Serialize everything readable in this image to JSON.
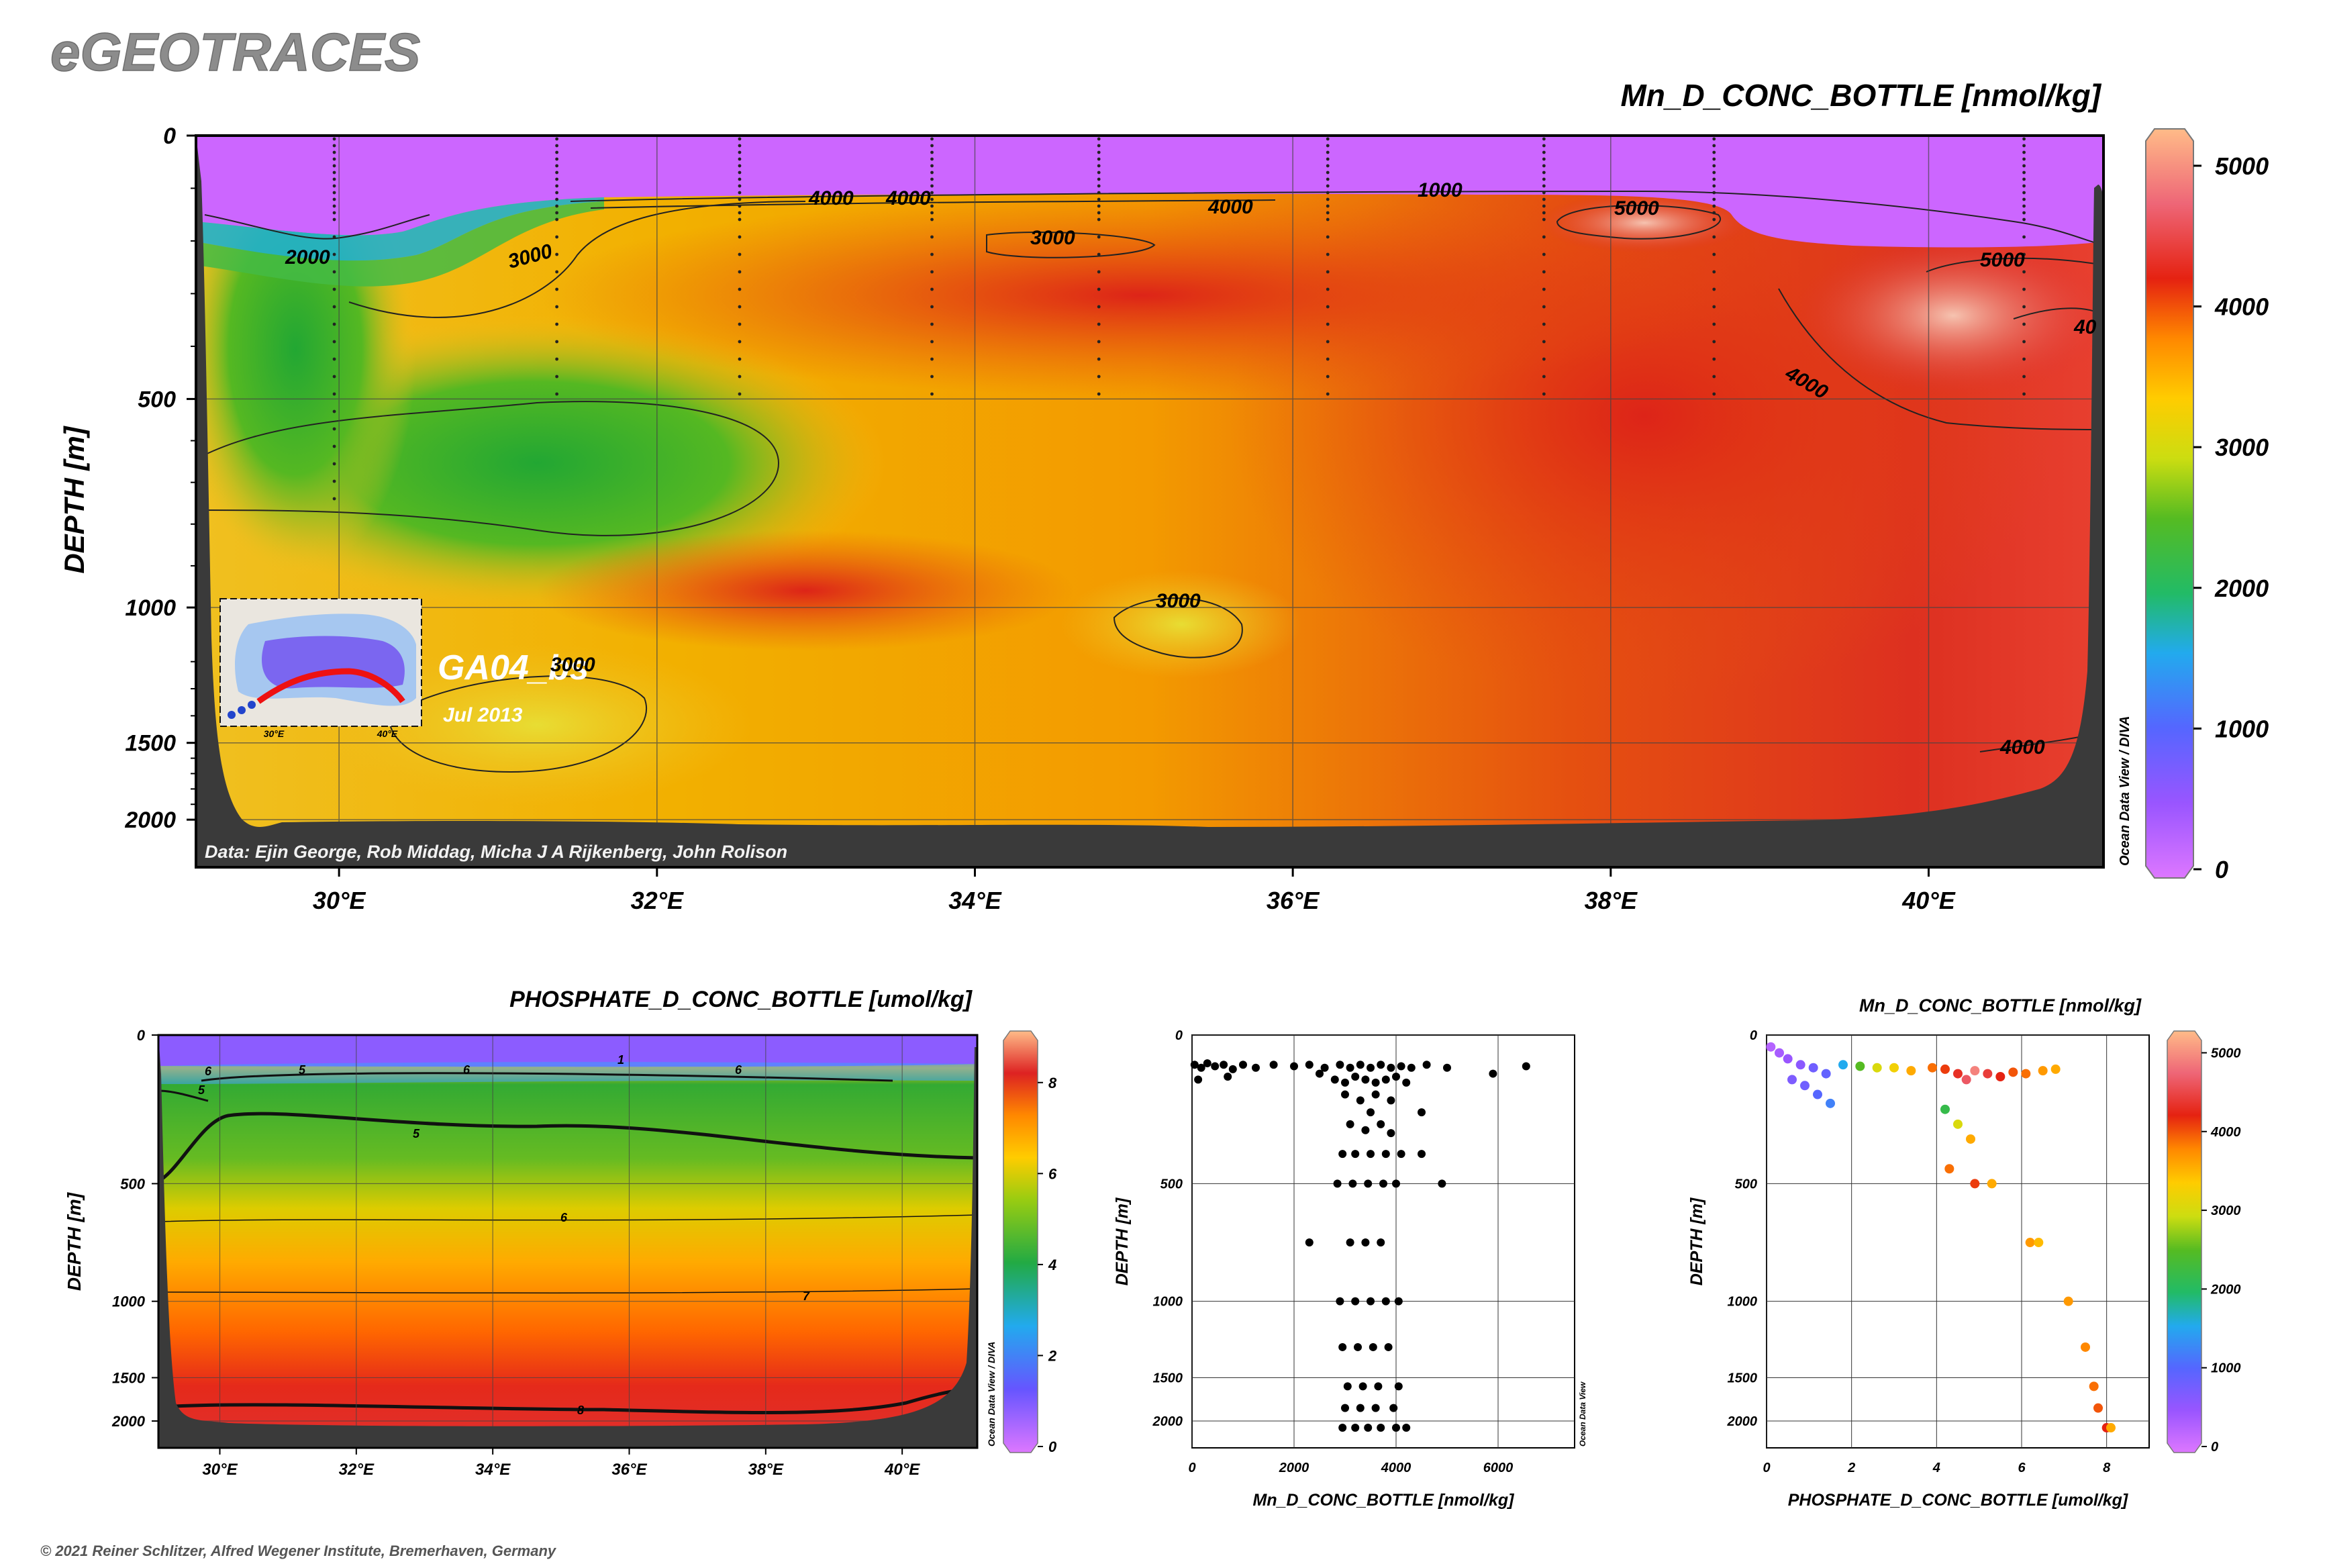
{
  "logo": "eGEOTRACES",
  "credit": "© 2021 Reiner Schlitzer, Alfred Wegener Institute, Bremerhaven, Germany",
  "main_section": {
    "title": "Mn_D_CONC_BOTTLE [nmol/kg]",
    "ylabel": "DEPTH [m]",
    "data_credit": "Data: Ejin George, Rob Middag, Micha J A Rijkenberg, John Rolison",
    "cruise": "GA04_bs",
    "date": "Jul 2013",
    "side_label": "Ocean Data View / DIVA",
    "inset_labels": [
      "30°E",
      "40°E"
    ],
    "contour_labels": [
      "2000",
      "3000",
      "4000",
      "3000",
      "4000",
      "1000",
      "5000",
      "5000",
      "4000",
      "4000",
      "3000",
      "3000",
      "4000",
      "40"
    ]
  },
  "phosphate_section": {
    "title": "PHOSPHATE_D_CONC_BOTTLE [umol/kg]",
    "ylabel": "DEPTH [m]",
    "side_label": "Ocean Data View / DIVA",
    "contour_labels": [
      "6",
      "5",
      "6",
      "6",
      "5",
      "1",
      "5",
      "6",
      "7",
      "8"
    ]
  },
  "scatter_profile": {
    "xlabel": "Mn_D_CONC_BOTTLE [nmol/kg]",
    "ylabel": "DEPTH [m]",
    "side_label": "Ocean Data View"
  },
  "property_plot": {
    "title": "Mn_D_CONC_BOTTLE [nmol/kg]",
    "xlabel": "PHOSPHATE_D_CONC_BOTTLE [umol/kg]",
    "ylabel": "DEPTH [m]"
  },
  "chart_data": [
    {
      "type": "heatmap",
      "name_printed": "Mn_D_CONC_BOTTLE [nmol/kg]",
      "x_ticks": [
        "30°E",
        "32°E",
        "34°E",
        "36°E",
        "38°E",
        "40°E"
      ],
      "x_values": [
        30,
        32,
        34,
        36,
        38,
        40
      ],
      "xlim": [
        29.1,
        41.1
      ],
      "y_ticks": [
        "0",
        "500",
        "1000",
        "1500",
        "2000"
      ],
      "y_values": [
        0,
        500,
        1000,
        1500,
        2000
      ],
      "ylim": [
        0,
        2200
      ],
      "y_scale": "nonlinear (expanded upper ocean)",
      "colorbar": {
        "ticks": [
          "0",
          "1000",
          "2000",
          "3000",
          "4000",
          "5000"
        ],
        "range": [
          0,
          5200
        ],
        "colors": [
          "#cc66ff",
          "#7733ee",
          "#22aaee",
          "#22aa44",
          "#ffcc00",
          "#ff8800",
          "#dd2222",
          "#ffaa88"
        ]
      },
      "grid": true
    },
    {
      "type": "heatmap",
      "name_printed": "PHOSPHATE_D_CONC_BOTTLE [umol/kg]",
      "x_ticks": [
        "30°E",
        "32°E",
        "34°E",
        "36°E",
        "38°E",
        "40°E"
      ],
      "x_values": [
        30,
        32,
        34,
        36,
        38,
        40
      ],
      "xlim": [
        29.1,
        41.1
      ],
      "y_ticks": [
        "0",
        "500",
        "1000",
        "1500",
        "2000"
      ],
      "y_values": [
        0,
        500,
        1000,
        1500,
        2000
      ],
      "ylim": [
        0,
        2200
      ],
      "colorbar": {
        "ticks": [
          "0",
          "2",
          "4",
          "6",
          "8"
        ],
        "range": [
          0,
          9
        ]
      },
      "grid": true
    },
    {
      "type": "scatter",
      "x_ticks": [
        "0",
        "2000",
        "4000",
        "6000"
      ],
      "xlim": [
        0,
        7500
      ],
      "y_ticks": [
        "0",
        "500",
        "1000",
        "1500",
        "2000"
      ],
      "ylim": [
        0,
        2200
      ],
      "grid": true,
      "points": [
        [
          50,
          100
        ],
        [
          180,
          110
        ],
        [
          300,
          95
        ],
        [
          450,
          105
        ],
        [
          620,
          100
        ],
        [
          800,
          115
        ],
        [
          1000,
          100
        ],
        [
          1250,
          110
        ],
        [
          1600,
          100
        ],
        [
          2000,
          105
        ],
        [
          2300,
          100
        ],
        [
          2600,
          110
        ],
        [
          2900,
          100
        ],
        [
          3100,
          110
        ],
        [
          3300,
          100
        ],
        [
          3500,
          110
        ],
        [
          3700,
          100
        ],
        [
          3900,
          110
        ],
        [
          4100,
          105
        ],
        [
          4300,
          110
        ],
        [
          4600,
          100
        ],
        [
          5000,
          110
        ],
        [
          5900,
          130
        ],
        [
          6550,
          105
        ],
        [
          120,
          150
        ],
        [
          700,
          140
        ],
        [
          2500,
          130
        ],
        [
          2800,
          150
        ],
        [
          3000,
          160
        ],
        [
          3200,
          140
        ],
        [
          3400,
          150
        ],
        [
          3600,
          160
        ],
        [
          3800,
          150
        ],
        [
          4000,
          140
        ],
        [
          4200,
          160
        ],
        [
          3000,
          200
        ],
        [
          3300,
          220
        ],
        [
          3600,
          200
        ],
        [
          3900,
          220
        ],
        [
          4500,
          260
        ],
        [
          3500,
          260
        ],
        [
          3100,
          300
        ],
        [
          3400,
          320
        ],
        [
          3700,
          300
        ],
        [
          3900,
          330
        ],
        [
          2950,
          400
        ],
        [
          3200,
          400
        ],
        [
          3500,
          400
        ],
        [
          3800,
          400
        ],
        [
          4100,
          400
        ],
        [
          4500,
          400
        ],
        [
          2850,
          500
        ],
        [
          3150,
          500
        ],
        [
          3450,
          500
        ],
        [
          3750,
          500
        ],
        [
          4000,
          500
        ],
        [
          4900,
          500
        ],
        [
          2300,
          750
        ],
        [
          3100,
          750
        ],
        [
          3400,
          750
        ],
        [
          3700,
          750
        ],
        [
          2900,
          1000
        ],
        [
          3200,
          1000
        ],
        [
          3500,
          1000
        ],
        [
          3800,
          1000
        ],
        [
          4050,
          1000
        ],
        [
          2950,
          1300
        ],
        [
          3250,
          1300
        ],
        [
          3550,
          1300
        ],
        [
          3850,
          1300
        ],
        [
          3050,
          1600
        ],
        [
          3350,
          1600
        ],
        [
          3650,
          1600
        ],
        [
          4050,
          1600
        ],
        [
          3000,
          1850
        ],
        [
          3300,
          1850
        ],
        [
          3600,
          1850
        ],
        [
          3950,
          1850
        ],
        [
          2950,
          2050
        ],
        [
          3200,
          2050
        ],
        [
          3450,
          2050
        ],
        [
          3700,
          2050
        ],
        [
          4000,
          2050
        ],
        [
          4200,
          2050
        ]
      ]
    },
    {
      "type": "scatter",
      "x_ticks": [
        "0",
        "2",
        "4",
        "6",
        "8"
      ],
      "xlim": [
        0,
        9
      ],
      "y_ticks": [
        "0",
        "500",
        "1000",
        "1500",
        "2000"
      ],
      "ylim": [
        0,
        2200
      ],
      "grid": true,
      "colorbar": {
        "ticks": [
          "0",
          "1000",
          "2000",
          "3000",
          "4000",
          "5000"
        ],
        "range": [
          0,
          5200
        ]
      },
      "points": [
        [
          0.1,
          40,
          300
        ],
        [
          0.3,
          60,
          400
        ],
        [
          0.5,
          80,
          500
        ],
        [
          0.8,
          100,
          600
        ],
        [
          1.1,
          110,
          800
        ],
        [
          1.4,
          130,
          900
        ],
        [
          0.6,
          150,
          700
        ],
        [
          0.9,
          170,
          800
        ],
        [
          1.2,
          200,
          1000
        ],
        [
          1.5,
          230,
          1200
        ],
        [
          1.8,
          100,
          1500
        ],
        [
          2.2,
          105,
          2500
        ],
        [
          2.6,
          110,
          3000
        ],
        [
          3.0,
          110,
          3200
        ],
        [
          3.4,
          120,
          3500
        ],
        [
          3.9,
          110,
          3800
        ],
        [
          4.2,
          115,
          4000
        ],
        [
          4.5,
          130,
          4200
        ],
        [
          4.7,
          150,
          4500
        ],
        [
          4.9,
          120,
          4800
        ],
        [
          5.2,
          130,
          4300
        ],
        [
          5.5,
          140,
          4100
        ],
        [
          5.8,
          125,
          3900
        ],
        [
          6.1,
          130,
          3800
        ],
        [
          6.5,
          120,
          3600
        ],
        [
          6.8,
          115,
          3500
        ],
        [
          4.2,
          250,
          2200
        ],
        [
          4.5,
          300,
          3000
        ],
        [
          4.8,
          350,
          3500
        ],
        [
          4.3,
          450,
          3800
        ],
        [
          4.9,
          500,
          4000
        ],
        [
          5.3,
          500,
          3500
        ],
        [
          6.2,
          750,
          3600
        ],
        [
          6.4,
          750,
          3400
        ],
        [
          7.1,
          1000,
          3600
        ],
        [
          7.5,
          1300,
          3700
        ],
        [
          7.7,
          1600,
          3800
        ],
        [
          7.8,
          1850,
          3900
        ],
        [
          8.0,
          2050,
          4100
        ],
        [
          8.1,
          2050,
          3500
        ]
      ]
    }
  ]
}
